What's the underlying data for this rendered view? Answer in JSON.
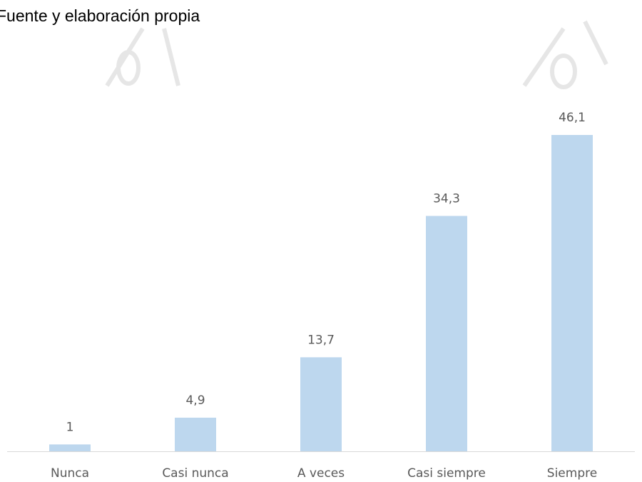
{
  "chart_data": {
    "type": "bar",
    "source_note": "Fuente y elaboración propia",
    "categories": [
      "Nunca",
      "Casi nunca",
      "A veces",
      "Casi siempre",
      "Siempre"
    ],
    "values": [
      1,
      4.9,
      13.7,
      34.3,
      46.1
    ],
    "value_labels": [
      "1",
      "4,9",
      "13,7",
      "34,3",
      "46,1"
    ],
    "color": "#bdd7ee"
  }
}
